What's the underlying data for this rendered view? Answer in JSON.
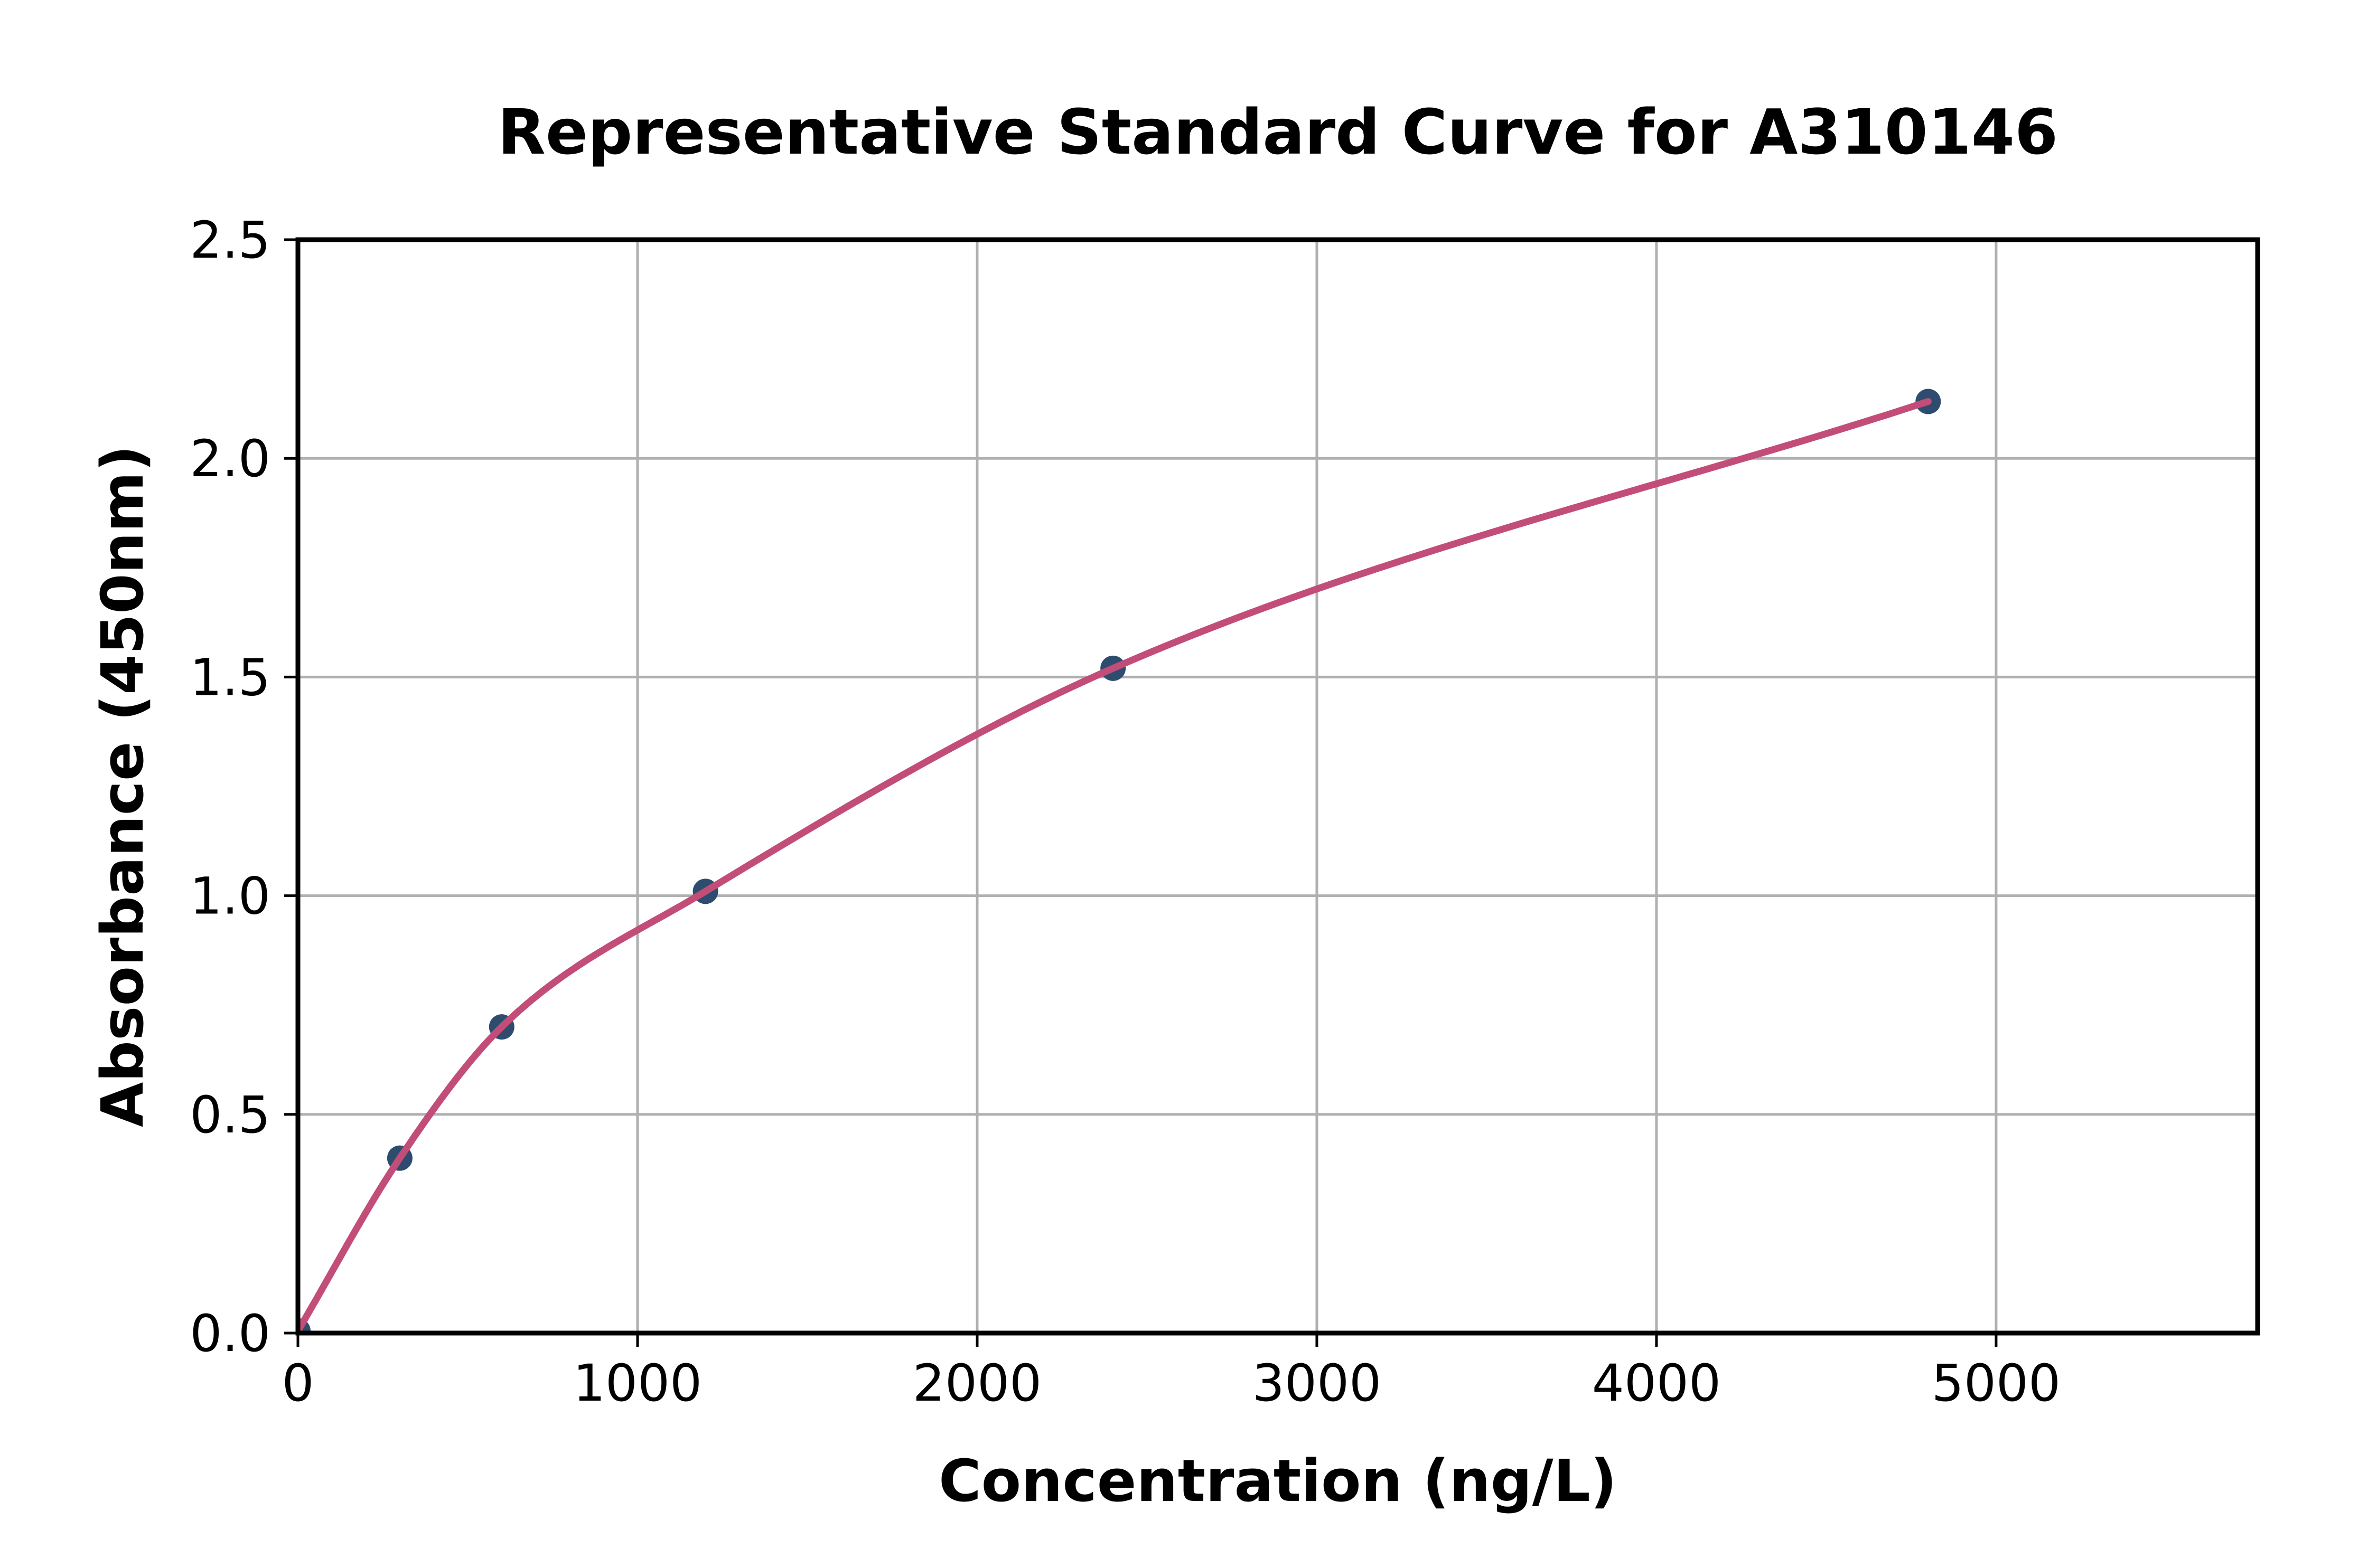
{
  "chart_data": {
    "type": "scatter",
    "title": "Representative Standard Curve for A310146",
    "xlabel": "Concentration (ng/L)",
    "ylabel": "Absorbance (450nm)",
    "series": [
      {
        "name": "standard-points",
        "type": "scatter",
        "x": [
          0,
          300,
          600,
          1200,
          2400,
          4800
        ],
        "y": [
          0.005,
          0.4,
          0.7,
          1.01,
          1.52,
          2.13
        ]
      },
      {
        "name": "fitted-curve",
        "type": "line",
        "note": "smooth saturating fit through the standard points, drawn from x=0 to x=4800"
      }
    ],
    "xlim": [
      0,
      5770
    ],
    "ylim": [
      0,
      2.5
    ],
    "xticks": [
      0,
      1000,
      2000,
      3000,
      4000,
      5000
    ],
    "xtick_labels": [
      "0",
      "1000",
      "2000",
      "3000",
      "4000",
      "5000"
    ],
    "yticks": [
      0,
      0.5,
      1.0,
      1.5,
      2.0,
      2.5
    ],
    "ytick_labels": [
      "0.0",
      "0.5",
      "1.0",
      "1.5",
      "2.0",
      "2.5"
    ],
    "grid": true,
    "legend_position": "none",
    "colors": {
      "curve": "#c34d79",
      "marker": "#2e4d6e",
      "grid": "#b0b0b0",
      "spine": "#000000",
      "text": "#000000",
      "background": "#ffffff"
    }
  }
}
